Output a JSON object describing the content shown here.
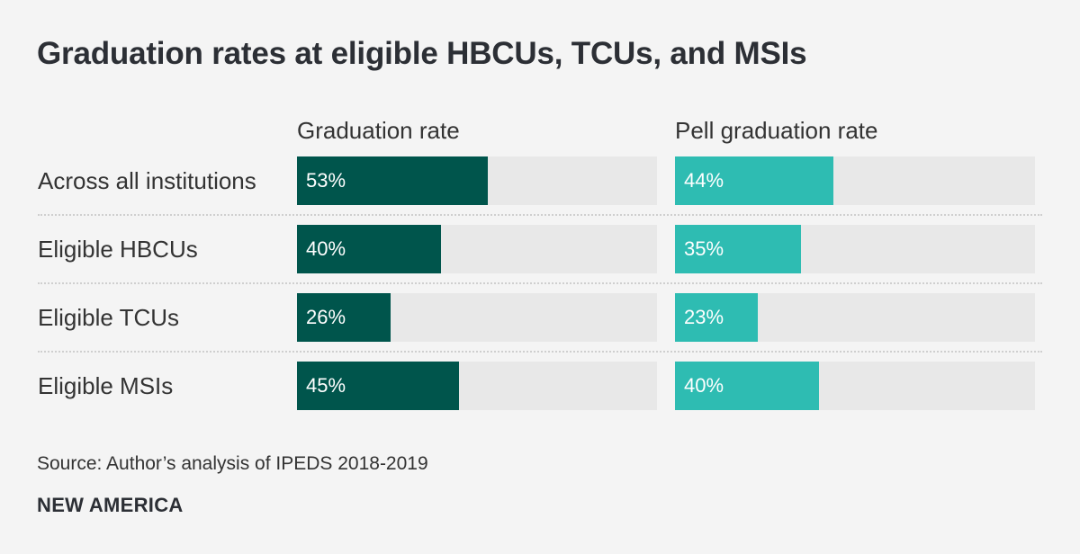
{
  "chart_data": {
    "type": "bar",
    "title": "Graduation rates at eligible HBCUs, TCUs, and MSIs",
    "categories": [
      "Across all institutions",
      "Eligible HBCUs",
      "Eligible TCUs",
      "Eligible MSIs"
    ],
    "series": [
      {
        "name": "Graduation rate",
        "values": [
          53,
          40,
          26,
          45
        ],
        "labels": [
          "53%",
          "40%",
          "26%",
          "45%"
        ],
        "color": "#00554c"
      },
      {
        "name": "Pell graduation rate",
        "values": [
          44,
          35,
          23,
          40
        ],
        "labels": [
          "44%",
          "35%",
          "23%",
          "40%"
        ],
        "color": "#2ebcb2"
      }
    ],
    "xlim": [
      0,
      100
    ],
    "unit": "%"
  },
  "footer": {
    "source": "Source: Author’s analysis of IPEDS 2018-2019",
    "brand": "NEW AMERICA"
  },
  "colors": {
    "background": "#f4f4f4",
    "track": "#e8e8e8",
    "dark_teal": "#00554c",
    "light_teal": "#2ebcb2"
  }
}
